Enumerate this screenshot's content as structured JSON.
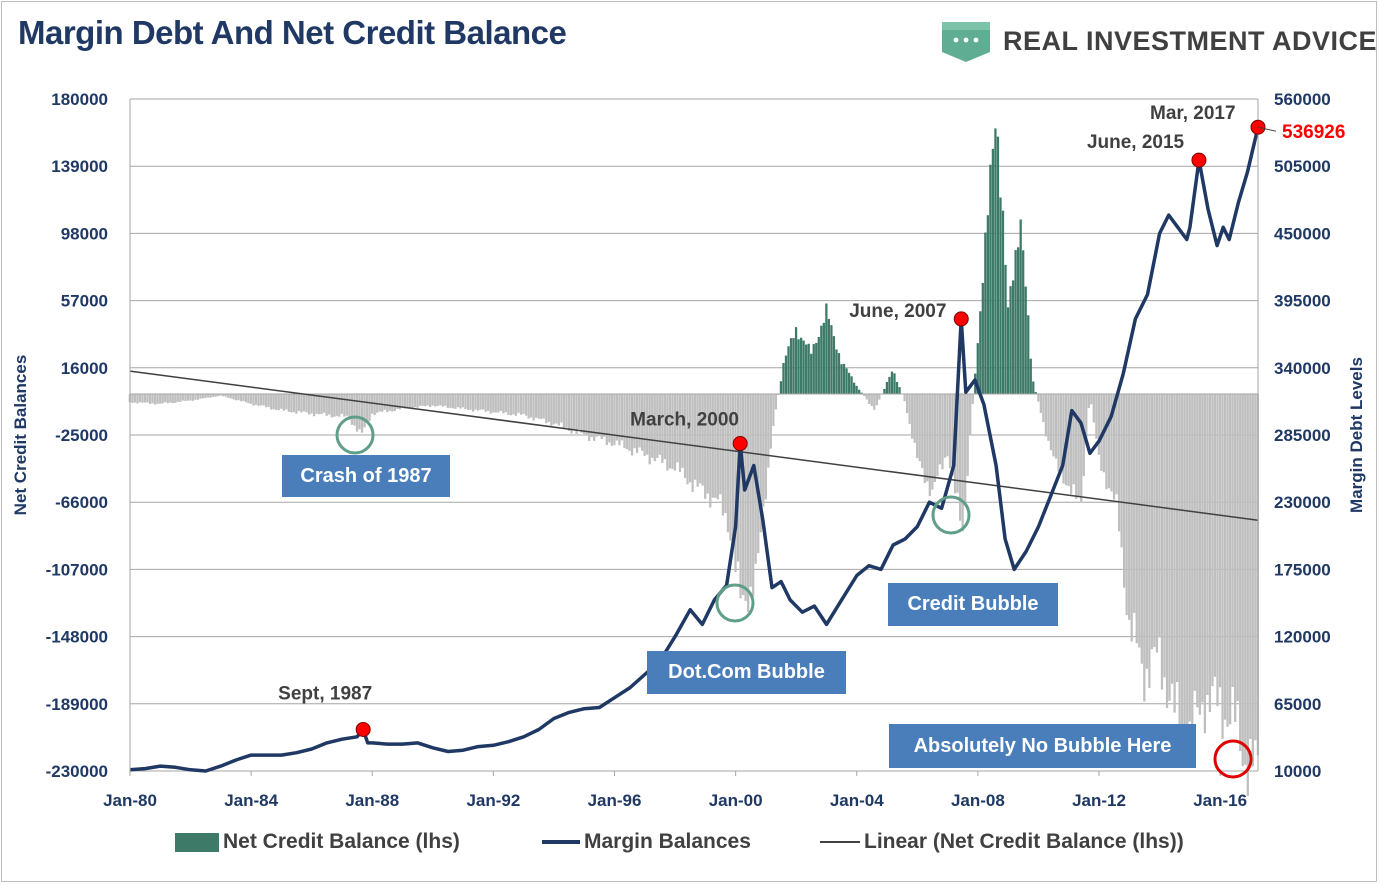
{
  "title": "Margin Debt And Net Credit Balance",
  "brand": {
    "name": "REAL INVESTMENT ADVICE",
    "logo_icon": "ellipsis-shield-logo",
    "logo_color": "#5fae94"
  },
  "chart_data": {
    "type": "bar+line",
    "left_axis": {
      "label": "Net Credit Balances",
      "ticks": [
        180000,
        139000,
        98000,
        57000,
        16000,
        -25000,
        -66000,
        -107000,
        -148000,
        -189000,
        -230000
      ],
      "range": [
        -230000,
        180000
      ]
    },
    "right_axis": {
      "label": "Margin Debt Levels",
      "ticks": [
        560000,
        505000,
        450000,
        395000,
        340000,
        285000,
        230000,
        175000,
        120000,
        65000,
        10000
      ],
      "range": [
        10000,
        560000
      ]
    },
    "x_ticks": [
      "Jan-80",
      "Jan-84",
      "Jan-88",
      "Jan-92",
      "Jan-96",
      "Jan-00",
      "Jan-04",
      "Jan-08",
      "Jan-12",
      "Jan-16"
    ],
    "x_range_years": [
      1980,
      2017.25
    ],
    "series": [
      {
        "name": "Net Credit Balance (lhs)",
        "type": "bar",
        "axis": "left",
        "positive_color": "#3d7a68",
        "negative_color": "#bfbfbf",
        "points": [
          [
            1980,
            -5000
          ],
          [
            1981,
            -6000
          ],
          [
            1982,
            -4000
          ],
          [
            1983,
            -1000
          ],
          [
            1984,
            -6000
          ],
          [
            1985,
            -10000
          ],
          [
            1986,
            -12000
          ],
          [
            1987.2,
            -14000
          ],
          [
            1987.65,
            -25000
          ],
          [
            1988,
            -12000
          ],
          [
            1989,
            -9000
          ],
          [
            1990,
            -7000
          ],
          [
            1991,
            -9000
          ],
          [
            1992,
            -11000
          ],
          [
            1993,
            -13000
          ],
          [
            1994,
            -18000
          ],
          [
            1995,
            -25000
          ],
          [
            1996,
            -30000
          ],
          [
            1997,
            -37000
          ],
          [
            1998,
            -45000
          ],
          [
            1998.8,
            -58000
          ],
          [
            1999.4,
            -65000
          ],
          [
            1999.8,
            -80000
          ],
          [
            2000.2,
            -130000
          ],
          [
            2000.7,
            -110000
          ],
          [
            2001.2,
            -25000
          ],
          [
            2001.6,
            20000
          ],
          [
            2002,
            40000
          ],
          [
            2002.5,
            25000
          ],
          [
            2003,
            50000
          ],
          [
            2003.5,
            20000
          ],
          [
            2004,
            5000
          ],
          [
            2004.6,
            -10000
          ],
          [
            2005.2,
            15000
          ],
          [
            2005.6,
            -5000
          ],
          [
            2006,
            -40000
          ],
          [
            2006.5,
            -60000
          ],
          [
            2007,
            -35000
          ],
          [
            2007.5,
            -85000
          ],
          [
            2007.9,
            10000
          ],
          [
            2008.3,
            100000
          ],
          [
            2008.6,
            180000
          ],
          [
            2009,
            50000
          ],
          [
            2009.4,
            110000
          ],
          [
            2009.8,
            10000
          ],
          [
            2010.2,
            -20000
          ],
          [
            2010.6,
            -45000
          ],
          [
            2011,
            -55000
          ],
          [
            2011.4,
            -70000
          ],
          [
            2011.7,
            0
          ],
          [
            2012,
            -40000
          ],
          [
            2012.6,
            -70000
          ],
          [
            2013,
            -140000
          ],
          [
            2013.5,
            -170000
          ],
          [
            2014,
            -160000
          ],
          [
            2014.5,
            -195000
          ],
          [
            2015,
            -210000
          ],
          [
            2015.5,
            -185000
          ],
          [
            2016,
            -190000
          ],
          [
            2016.5,
            -200000
          ],
          [
            2016.9,
            -225000
          ],
          [
            2017.2,
            -230000
          ]
        ]
      },
      {
        "name": "Margin Balances",
        "type": "line",
        "axis": "right",
        "color": "#1f3864",
        "points": [
          [
            1980,
            11000
          ],
          [
            1980.5,
            12000
          ],
          [
            1981,
            14000
          ],
          [
            1981.5,
            13000
          ],
          [
            1982,
            11000
          ],
          [
            1982.5,
            10000
          ],
          [
            1983,
            14000
          ],
          [
            1983.5,
            19000
          ],
          [
            1984,
            23000
          ],
          [
            1984.5,
            23000
          ],
          [
            1985,
            23000
          ],
          [
            1985.5,
            25000
          ],
          [
            1986,
            28000
          ],
          [
            1986.5,
            33000
          ],
          [
            1987,
            36000
          ],
          [
            1987.5,
            38000
          ],
          [
            1987.7,
            44000
          ],
          [
            1987.85,
            33000
          ],
          [
            1988,
            33000
          ],
          [
            1988.5,
            32000
          ],
          [
            1989,
            32000
          ],
          [
            1989.5,
            33000
          ],
          [
            1990,
            29000
          ],
          [
            1990.5,
            26000
          ],
          [
            1991,
            27000
          ],
          [
            1991.5,
            30000
          ],
          [
            1992,
            31000
          ],
          [
            1992.5,
            34000
          ],
          [
            1993,
            38000
          ],
          [
            1993.5,
            44000
          ],
          [
            1994,
            53000
          ],
          [
            1994.5,
            58000
          ],
          [
            1995,
            61000
          ],
          [
            1995.5,
            62000
          ],
          [
            1996,
            70000
          ],
          [
            1996.5,
            78000
          ],
          [
            1997,
            89000
          ],
          [
            1997.5,
            100000
          ],
          [
            1998,
            120000
          ],
          [
            1998.5,
            142000
          ],
          [
            1998.9,
            130000
          ],
          [
            1999.3,
            150000
          ],
          [
            1999.7,
            162000
          ],
          [
            2000,
            210000
          ],
          [
            2000.15,
            278000
          ],
          [
            2000.3,
            240000
          ],
          [
            2000.6,
            260000
          ],
          [
            2000.9,
            215000
          ],
          [
            2001.2,
            160000
          ],
          [
            2001.5,
            165000
          ],
          [
            2001.8,
            150000
          ],
          [
            2002.2,
            140000
          ],
          [
            2002.6,
            145000
          ],
          [
            2003,
            130000
          ],
          [
            2003.5,
            150000
          ],
          [
            2004,
            170000
          ],
          [
            2004.4,
            178000
          ],
          [
            2004.8,
            175000
          ],
          [
            2005.2,
            195000
          ],
          [
            2005.6,
            200000
          ],
          [
            2006,
            210000
          ],
          [
            2006.4,
            230000
          ],
          [
            2006.8,
            225000
          ],
          [
            2007.2,
            260000
          ],
          [
            2007.45,
            380000
          ],
          [
            2007.6,
            320000
          ],
          [
            2007.9,
            330000
          ],
          [
            2008.2,
            310000
          ],
          [
            2008.6,
            260000
          ],
          [
            2008.9,
            200000
          ],
          [
            2009.2,
            175000
          ],
          [
            2009.6,
            190000
          ],
          [
            2010,
            210000
          ],
          [
            2010.4,
            235000
          ],
          [
            2010.8,
            260000
          ],
          [
            2011.1,
            305000
          ],
          [
            2011.4,
            295000
          ],
          [
            2011.7,
            270000
          ],
          [
            2012,
            280000
          ],
          [
            2012.4,
            300000
          ],
          [
            2012.8,
            335000
          ],
          [
            2013.2,
            380000
          ],
          [
            2013.6,
            400000
          ],
          [
            2014,
            450000
          ],
          [
            2014.3,
            465000
          ],
          [
            2014.6,
            455000
          ],
          [
            2014.9,
            445000
          ],
          [
            2015,
            455000
          ],
          [
            2015.3,
            510000
          ],
          [
            2015.6,
            470000
          ],
          [
            2015.9,
            440000
          ],
          [
            2016.1,
            455000
          ],
          [
            2016.3,
            445000
          ],
          [
            2016.6,
            475000
          ],
          [
            2016.9,
            500000
          ],
          [
            2017.25,
            536926
          ]
        ]
      },
      {
        "name": "Linear (Net Credit Balance (lhs))",
        "type": "trendline",
        "axis": "left",
        "color": "#404040",
        "start": [
          1980,
          14000
        ],
        "end": [
          2017.25,
          -77000
        ]
      }
    ],
    "annotations": [
      {
        "label": "Sept, 1987",
        "x": 1987.7,
        "value": 44000,
        "axis": "right"
      },
      {
        "label": "March, 2000",
        "x": 2000.15,
        "value": 278000,
        "axis": "right"
      },
      {
        "label": "June, 2007",
        "x": 2007.45,
        "value": 380000,
        "axis": "right"
      },
      {
        "label": "June, 2015",
        "x": 2015.3,
        "value": 510000,
        "axis": "right"
      },
      {
        "label": "Mar, 2017",
        "x": 2017.25,
        "value": 536926,
        "axis": "right"
      }
    ],
    "last_value_label": "536926",
    "callouts": [
      "Crash of 1987",
      "Dot.Com Bubble",
      "Credit Bubble",
      "Absolutely No Bubble Here"
    ],
    "legend_position": "bottom",
    "gridlines": true
  }
}
